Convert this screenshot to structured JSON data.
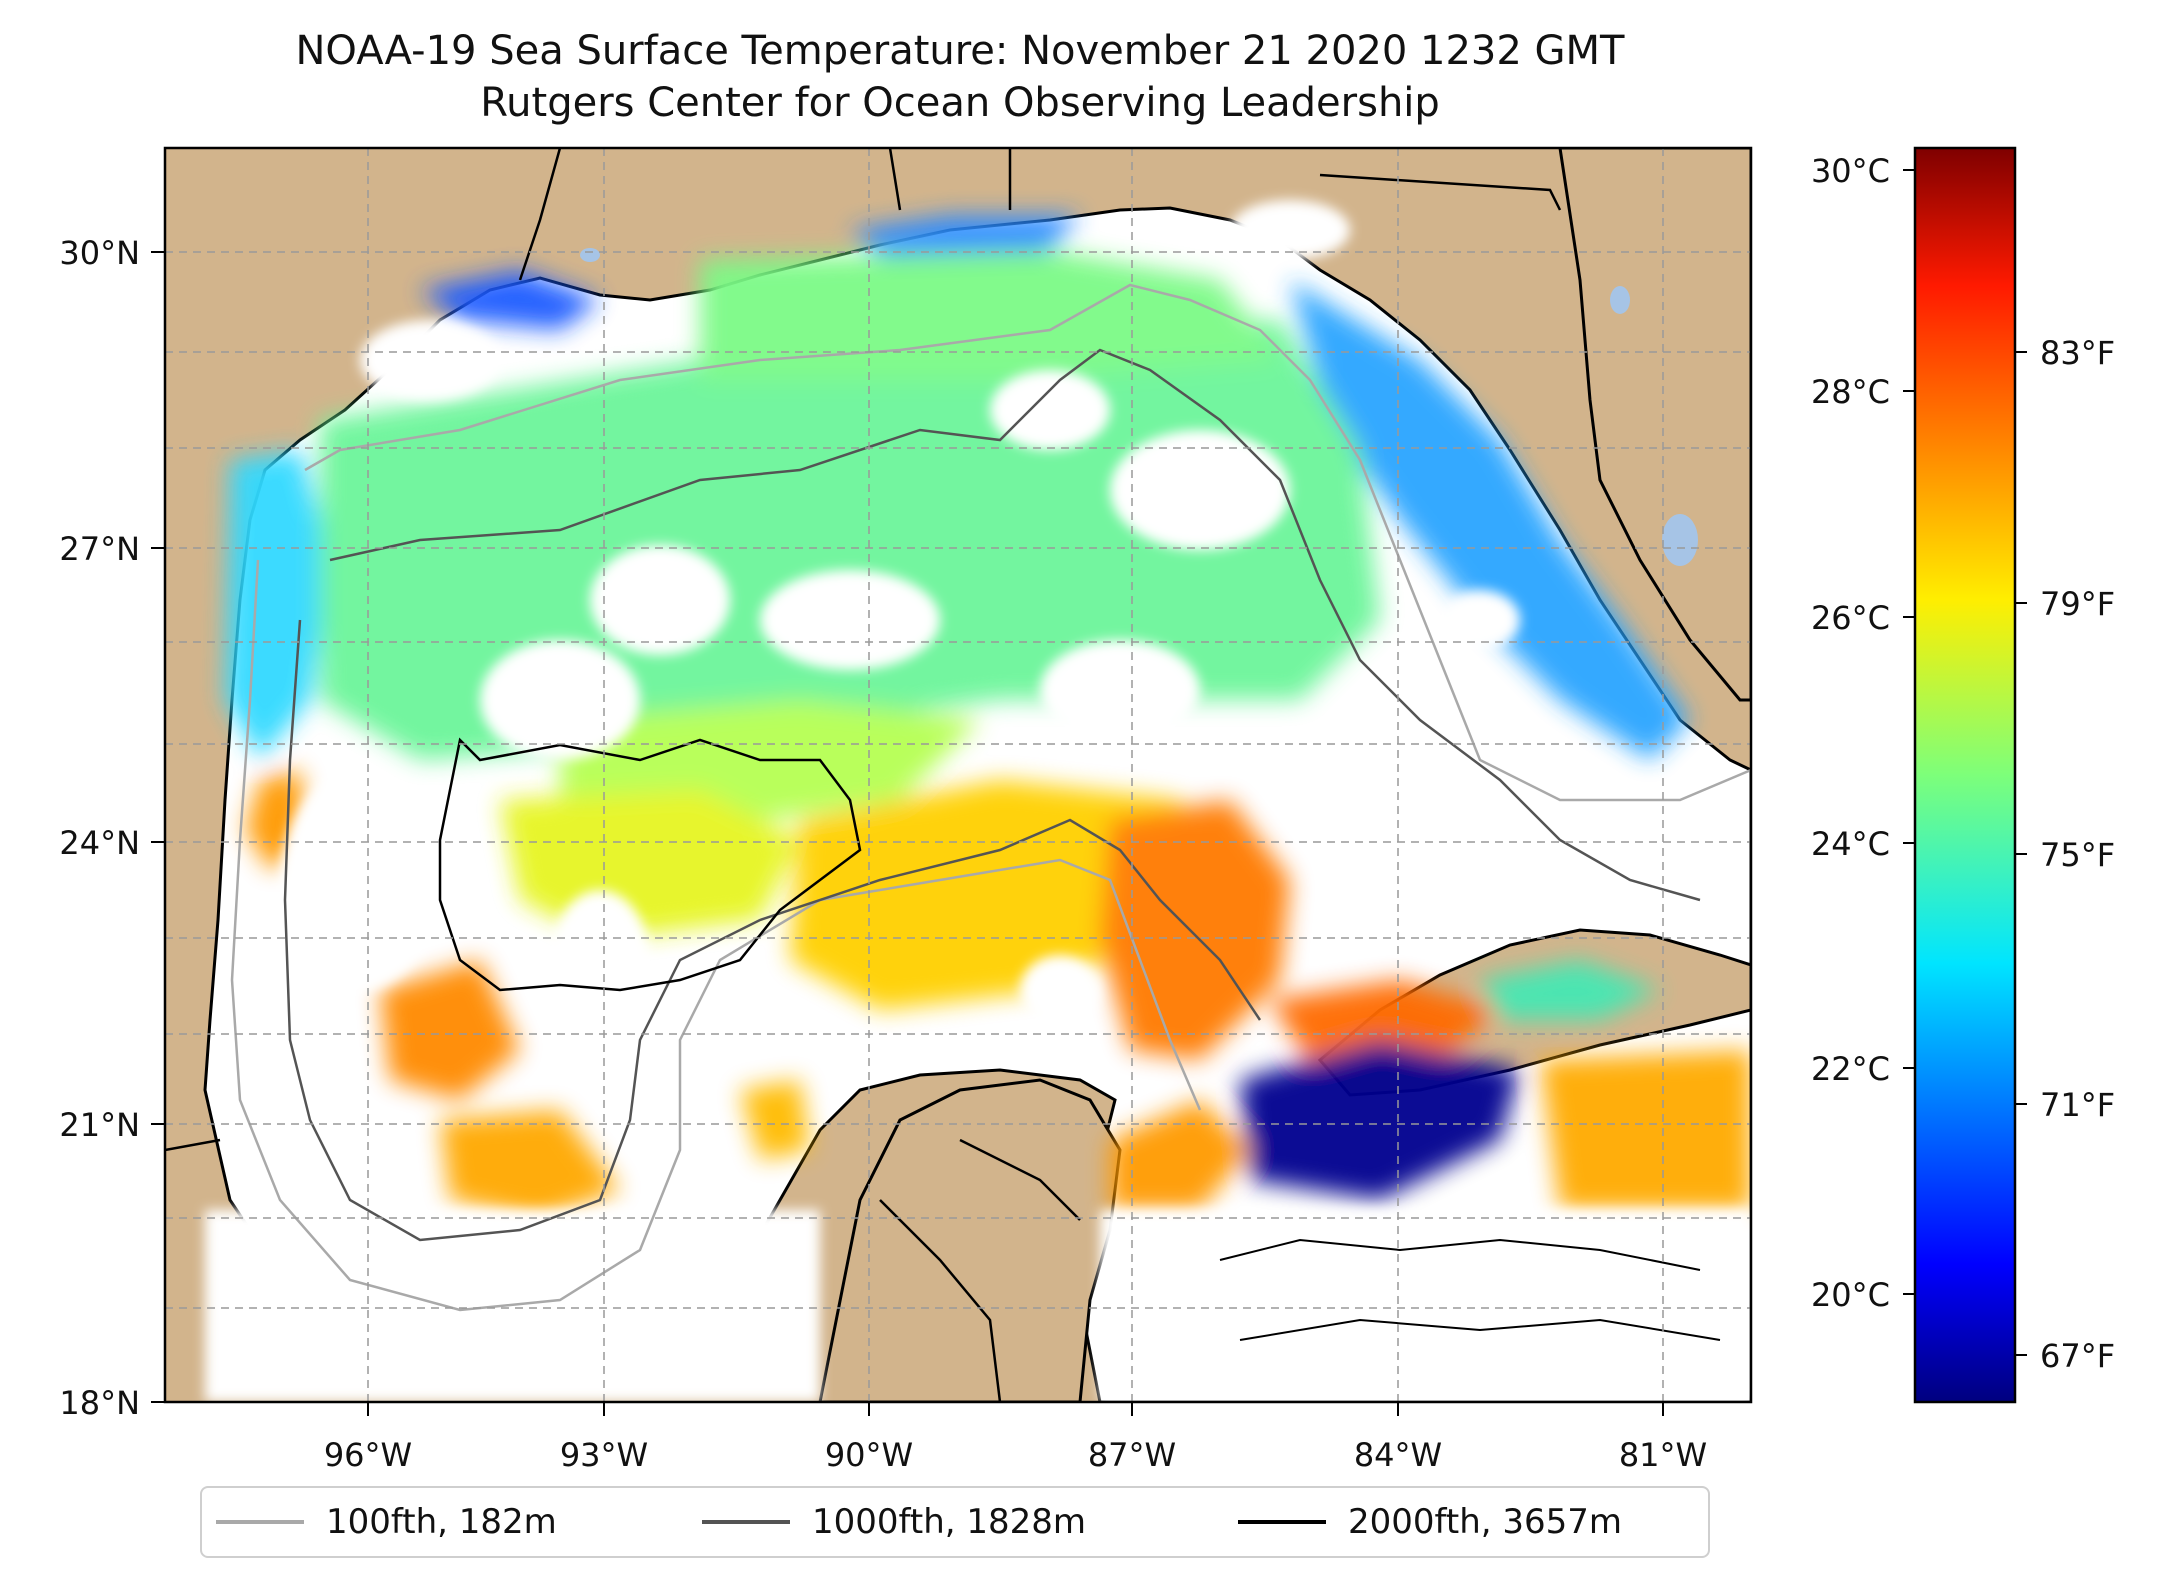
{
  "title": {
    "line1": "NOAA-19 Sea Surface Temperature: November 21 2020 1232 GMT",
    "line2": "Rutgers Center for Ocean Observing Leadership"
  },
  "map": {
    "extent": {
      "lon_min": -98.2,
      "lon_max": -80.4,
      "lat_min": 18.0,
      "lat_max": 31.0
    },
    "lon_ticks": [
      {
        "value": -96,
        "label": "96°W"
      },
      {
        "value": -93,
        "label": "93°W"
      },
      {
        "value": -90,
        "label": "90°W"
      },
      {
        "value": -87,
        "label": "87°W"
      },
      {
        "value": -84,
        "label": "84°W"
      },
      {
        "value": -81,
        "label": "81°W"
      }
    ],
    "lat_ticks": [
      {
        "value": 30,
        "label": "30°N"
      },
      {
        "value": 27,
        "label": "27°N"
      },
      {
        "value": 24,
        "label": "24°N"
      },
      {
        "value": 21,
        "label": "21°N"
      },
      {
        "value": 18,
        "label": "18°N"
      }
    ],
    "colors": {
      "land": "#d2b48c",
      "water_nodata": "#ffffff",
      "lakes": "#a6c4e6"
    }
  },
  "colorbar": {
    "colormap": "jet",
    "celsius_ticks": [
      {
        "value": 30,
        "label": "30°C"
      },
      {
        "value": 28,
        "label": "28°C"
      },
      {
        "value": 26,
        "label": "26°C"
      },
      {
        "value": 24,
        "label": "24°C"
      },
      {
        "value": 22,
        "label": "22°C"
      },
      {
        "value": 20,
        "label": "20°C"
      }
    ],
    "fahrenheit_ticks": [
      {
        "value": 83,
        "label": "83°F"
      },
      {
        "value": 79,
        "label": "79°F"
      },
      {
        "value": 75,
        "label": "75°F"
      },
      {
        "value": 71,
        "label": "71°F"
      },
      {
        "value": 67,
        "label": "67°F"
      }
    ]
  },
  "legend": [
    {
      "label": "100fth, 182m",
      "color": "#a9a9a9"
    },
    {
      "label": "1000fth, 1828m",
      "color": "#545454"
    },
    {
      "label": "2000fth, 3657m",
      "color": "#000000"
    }
  ]
}
